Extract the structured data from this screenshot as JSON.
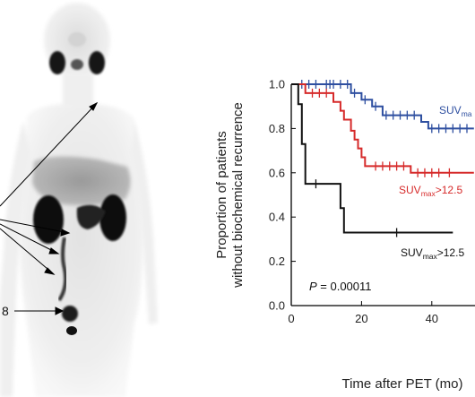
{
  "pet_image": {
    "visible_label_fragment": "8"
  },
  "chart_data": {
    "type": "line",
    "ylabel_line1": "Proportion of patients",
    "ylabel_line2": "without biochemical recurrence",
    "xlabel": "Time after PET (mo)",
    "xlim": [
      0,
      52
    ],
    "ylim": [
      0,
      1.0
    ],
    "xticks": [
      "0",
      "20",
      "40"
    ],
    "yticks": [
      "0.0",
      "0.2",
      "0.4",
      "0.6",
      "0.8",
      "1.0"
    ],
    "p_value": {
      "symbol": "P",
      "text": " = 0.00011"
    },
    "series": [
      {
        "label_main": "SUV",
        "label_sub": "ma",
        "label_suffix": "",
        "color": "#2e4fa0",
        "steps": [
          [
            0,
            1.0
          ],
          [
            17,
            1.0
          ],
          [
            17,
            0.96
          ],
          [
            20,
            0.96
          ],
          [
            20,
            0.93
          ],
          [
            23,
            0.93
          ],
          [
            23,
            0.9
          ],
          [
            26,
            0.9
          ],
          [
            26,
            0.86
          ],
          [
            37,
            0.86
          ],
          [
            37,
            0.83
          ],
          [
            39,
            0.83
          ],
          [
            39,
            0.8
          ],
          [
            52,
            0.8
          ]
        ],
        "censors": [
          [
            3,
            1.0
          ],
          [
            5,
            1.0
          ],
          [
            7,
            1.0
          ],
          [
            10,
            1.0
          ],
          [
            11,
            1.0
          ],
          [
            12,
            1.0
          ],
          [
            14,
            1.0
          ],
          [
            16,
            1.0
          ],
          [
            18,
            0.96
          ],
          [
            21,
            0.93
          ],
          [
            24,
            0.9
          ],
          [
            27,
            0.86
          ],
          [
            29,
            0.86
          ],
          [
            31,
            0.86
          ],
          [
            33,
            0.86
          ],
          [
            35,
            0.86
          ],
          [
            40,
            0.8
          ],
          [
            42,
            0.8
          ],
          [
            44,
            0.8
          ],
          [
            46,
            0.8
          ],
          [
            48,
            0.8
          ],
          [
            50,
            0.8
          ]
        ]
      },
      {
        "label_main": "SUV",
        "label_sub": "max",
        "label_suffix": ">12.5",
        "color": "#d62a2a",
        "steps": [
          [
            0,
            1.0
          ],
          [
            4,
            1.0
          ],
          [
            4,
            0.96
          ],
          [
            12,
            0.96
          ],
          [
            12,
            0.92
          ],
          [
            14,
            0.92
          ],
          [
            14,
            0.88
          ],
          [
            15,
            0.88
          ],
          [
            15,
            0.84
          ],
          [
            17,
            0.84
          ],
          [
            17,
            0.79
          ],
          [
            18,
            0.79
          ],
          [
            18,
            0.75
          ],
          [
            19,
            0.75
          ],
          [
            19,
            0.71
          ],
          [
            20,
            0.71
          ],
          [
            20,
            0.67
          ],
          [
            21,
            0.67
          ],
          [
            21,
            0.63
          ],
          [
            34,
            0.63
          ],
          [
            34,
            0.6
          ],
          [
            52,
            0.6
          ]
        ],
        "censors": [
          [
            6,
            0.96
          ],
          [
            8,
            0.96
          ],
          [
            10,
            0.96
          ],
          [
            24,
            0.63
          ],
          [
            26,
            0.63
          ],
          [
            28,
            0.63
          ],
          [
            30,
            0.63
          ],
          [
            32,
            0.63
          ],
          [
            36,
            0.6
          ],
          [
            38,
            0.6
          ],
          [
            40,
            0.6
          ],
          [
            42,
            0.6
          ],
          [
            45,
            0.6
          ]
        ]
      },
      {
        "label_main": "SUV",
        "label_sub": "max",
        "label_suffix": ">12.5",
        "color": "#111111",
        "steps": [
          [
            0,
            1.0
          ],
          [
            2,
            1.0
          ],
          [
            2,
            0.91
          ],
          [
            3,
            0.91
          ],
          [
            3,
            0.73
          ],
          [
            4,
            0.73
          ],
          [
            4,
            0.55
          ],
          [
            14,
            0.55
          ],
          [
            14,
            0.44
          ],
          [
            15,
            0.44
          ],
          [
            15,
            0.33
          ],
          [
            46,
            0.33
          ]
        ],
        "censors": [
          [
            7,
            0.55
          ],
          [
            30,
            0.33
          ]
        ]
      }
    ]
  }
}
